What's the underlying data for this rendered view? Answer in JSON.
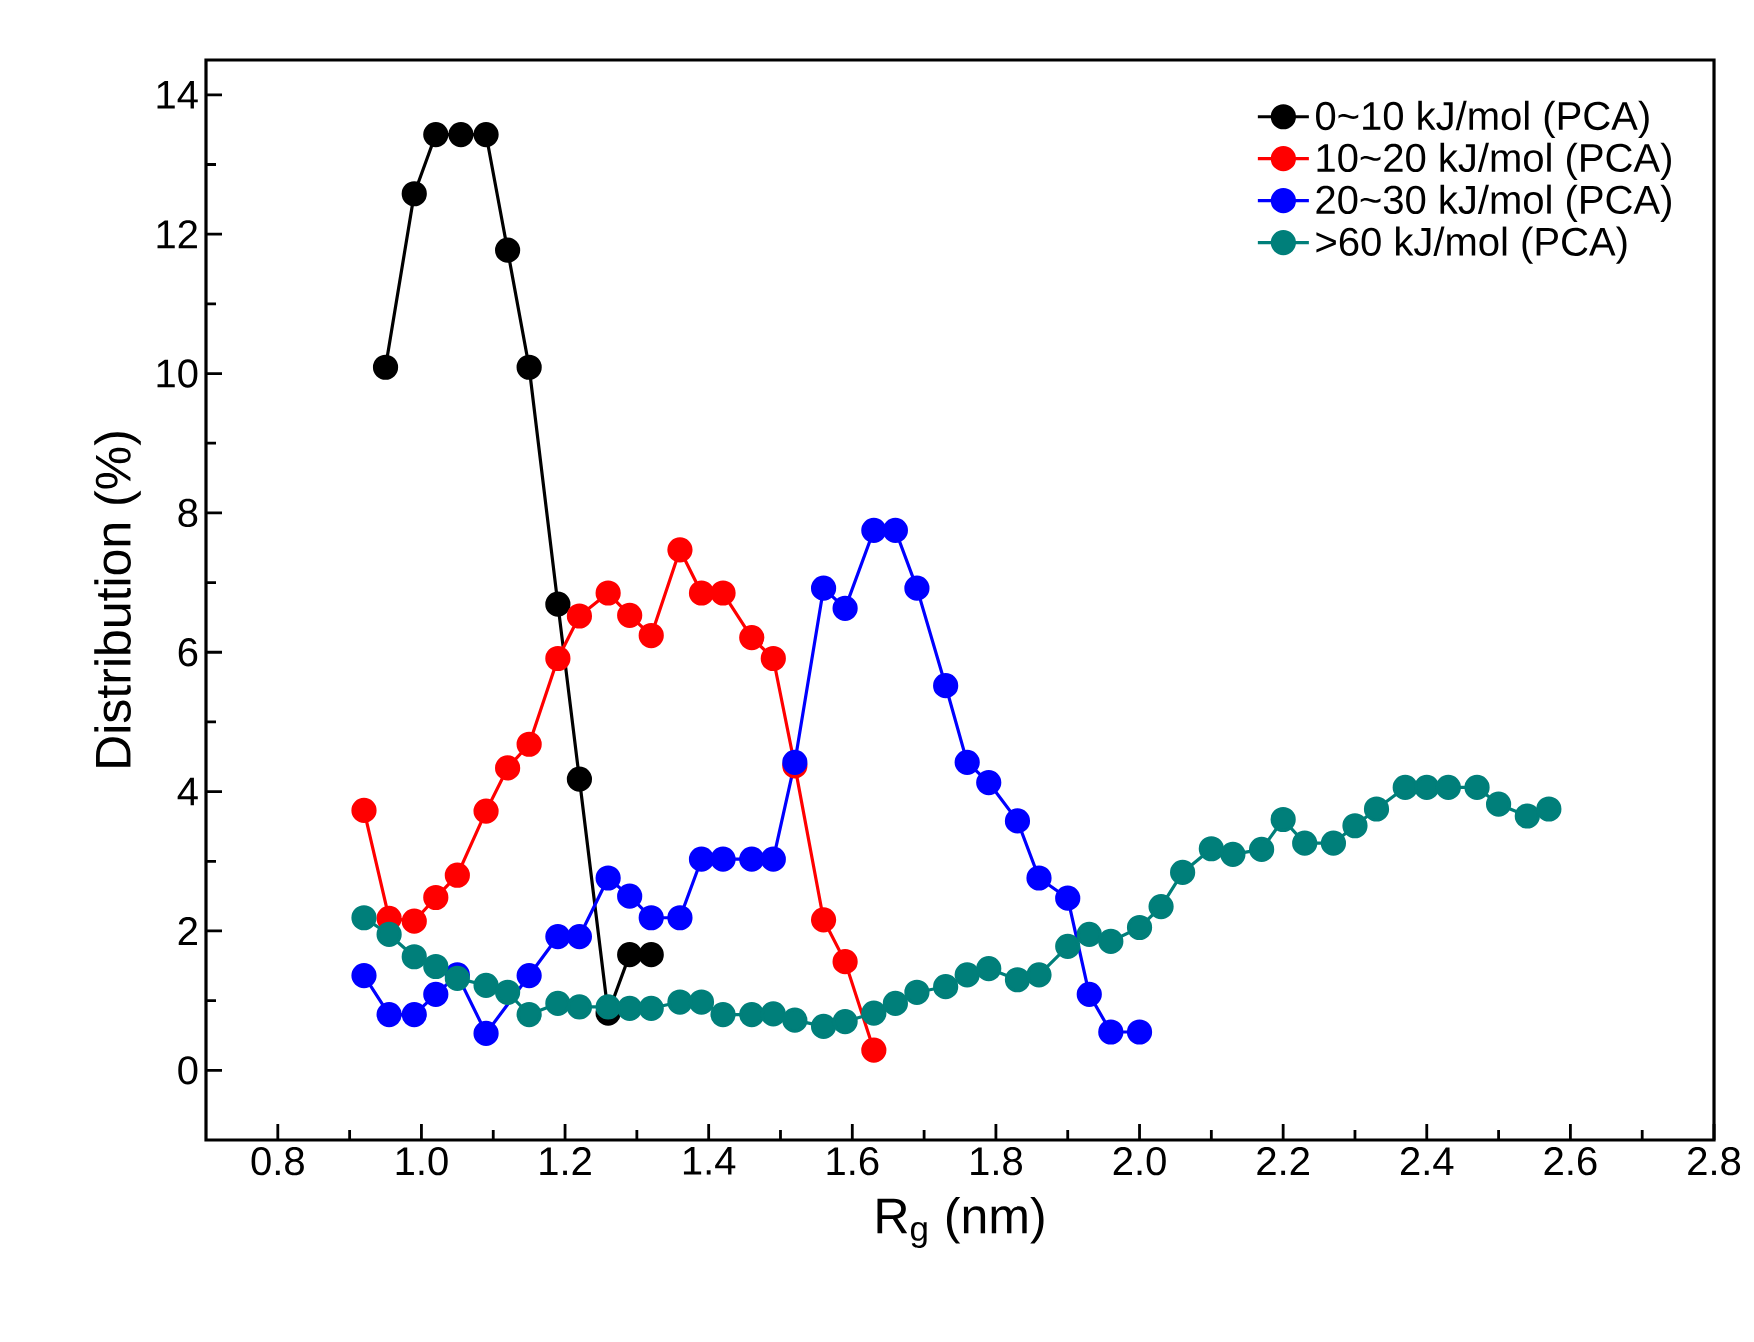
{
  "chart_data": {
    "type": "line",
    "xlabel": "R$_{g}$ (nm)",
    "ylabel": "Distribution (%)",
    "xlim": [
      0.7,
      2.8
    ],
    "ylim": [
      -1,
      14.5
    ],
    "xticks": [
      0.8,
      {
        "value": 1.0,
        "label": "1.0"
      },
      1.2,
      1.4,
      1.6,
      1.8,
      {
        "value": 2.0,
        "label": "2.0"
      },
      2.2,
      2.4,
      2.6,
      2.8
    ],
    "yticks": [
      0,
      2,
      4,
      6,
      8,
      10,
      12,
      14
    ],
    "marker": "circle",
    "line_style": "solid",
    "legend": "top right",
    "grid": false,
    "series": [
      {
        "name": "0~10 kJ/mol (PCA)",
        "color": "#000000",
        "x": [
          0.95,
          0.99,
          1.02,
          1.055,
          1.09,
          1.12,
          1.15,
          1.19,
          1.22,
          1.26,
          1.29,
          1.32
        ],
        "values": [
          10.09,
          12.58,
          13.43,
          13.43,
          13.43,
          11.77,
          10.09,
          6.69,
          4.18,
          0.82,
          1.66,
          1.66
        ]
      },
      {
        "name": "10~20 kJ/mol (PCA)",
        "color": "#ff0000",
        "x": [
          0.92,
          0.955,
          0.99,
          1.02,
          1.05,
          1.09,
          1.12,
          1.15,
          1.19,
          1.22,
          1.26,
          1.29,
          1.32,
          1.36,
          1.39,
          1.42,
          1.46,
          1.49,
          1.52,
          1.56,
          1.59,
          1.63
        ],
        "values": [
          3.73,
          2.18,
          2.14,
          2.48,
          2.8,
          3.72,
          4.34,
          4.68,
          5.91,
          6.52,
          6.85,
          6.53,
          6.24,
          7.47,
          6.85,
          6.85,
          6.21,
          5.91,
          4.37,
          2.16,
          1.56,
          0.29
        ]
      },
      {
        "name": "20~30 kJ/mol (PCA)",
        "color": "#0000ff",
        "x": [
          0.92,
          0.955,
          0.99,
          1.02,
          1.05,
          1.09,
          1.12,
          1.15,
          1.19,
          1.22,
          1.26,
          1.29,
          1.32,
          1.36,
          1.39,
          1.42,
          1.46,
          1.49,
          1.52,
          1.56,
          1.59,
          1.63,
          1.66,
          1.69,
          1.73,
          1.76,
          1.79,
          1.83,
          1.86,
          1.9,
          1.93,
          1.96,
          2.0
        ],
        "values": [
          1.36,
          0.8,
          0.8,
          1.09,
          1.37,
          0.53,
          null,
          1.36,
          1.92,
          1.92,
          2.76,
          2.5,
          2.19,
          2.19,
          3.03,
          3.03,
          3.03,
          3.03,
          4.42,
          6.92,
          6.63,
          7.75,
          7.75,
          6.92,
          5.52,
          4.42,
          4.13,
          3.58,
          2.76,
          2.47,
          1.09,
          0.55,
          0.55
        ]
      },
      {
        "name": ">60 kJ/mol (PCA)",
        "color": "#007f7a",
        "x": [
          0.92,
          0.955,
          0.99,
          1.02,
          1.05,
          1.09,
          1.12,
          1.15,
          1.19,
          1.22,
          1.26,
          1.29,
          1.32,
          1.36,
          1.39,
          1.42,
          1.46,
          1.49,
          1.52,
          1.56,
          1.59,
          1.63,
          1.66,
          1.69,
          1.73,
          1.76,
          1.79,
          1.83,
          1.86,
          1.9,
          1.93,
          1.96,
          2.0,
          2.03,
          2.06,
          2.1,
          2.13,
          2.17,
          2.2,
          2.23,
          2.27,
          2.3,
          2.33,
          2.37,
          2.4,
          2.43,
          2.47,
          2.5,
          2.54,
          2.57
        ],
        "values": [
          2.19,
          1.95,
          1.63,
          1.49,
          1.32,
          1.22,
          1.12,
          0.8,
          0.96,
          0.91,
          0.91,
          0.89,
          0.89,
          0.98,
          0.98,
          0.8,
          0.8,
          0.81,
          0.72,
          0.63,
          0.7,
          0.82,
          0.96,
          1.12,
          1.2,
          1.37,
          1.46,
          1.3,
          1.37,
          1.78,
          1.95,
          1.85,
          2.05,
          2.35,
          2.84,
          3.18,
          3.1,
          3.17,
          3.6,
          3.26,
          3.26,
          3.51,
          3.75,
          4.06,
          4.06,
          4.06,
          4.06,
          3.82,
          3.65,
          3.75
        ]
      }
    ]
  }
}
